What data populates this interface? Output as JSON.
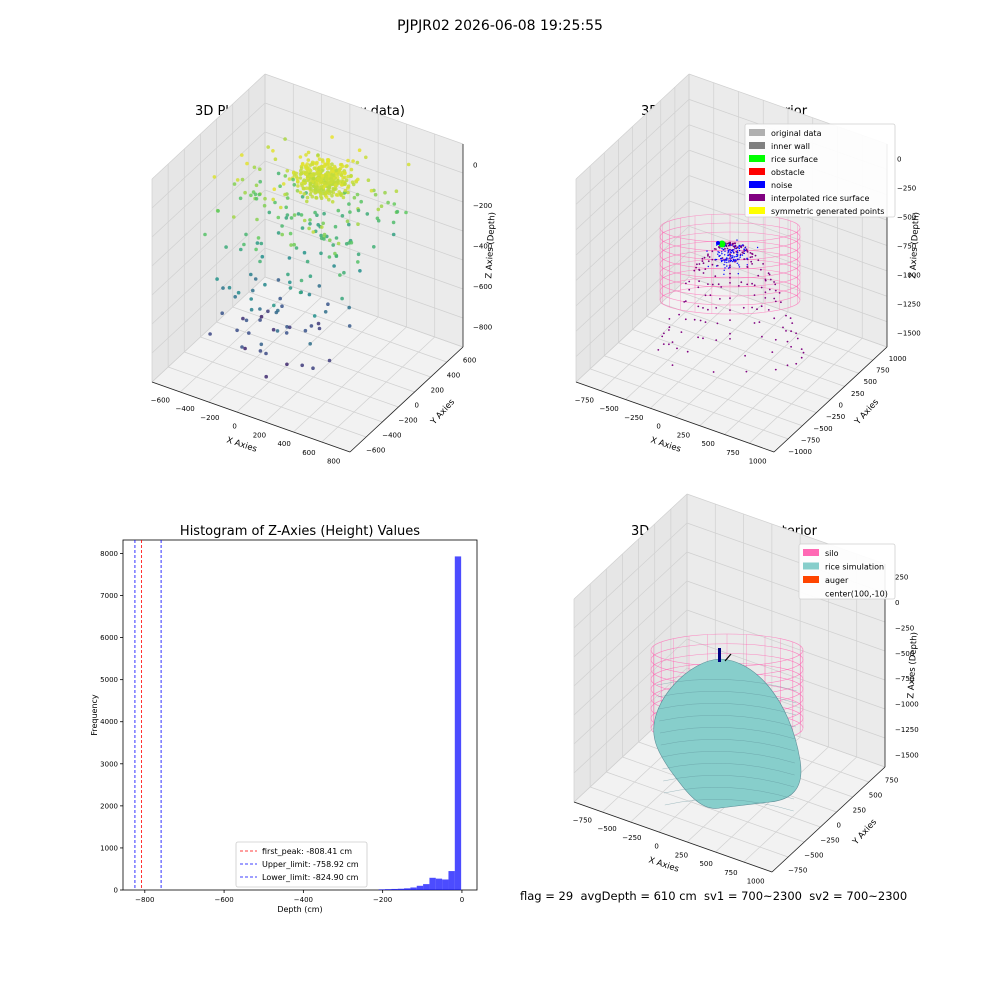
{
  "suptitle": "PJPJR02 2026-06-08 19:25:55",
  "status_text": "flag = 29  avgDepth = 610 cm  sv1 = 700~2300  sv2 = 700~2300",
  "colors": {
    "viridis": [
      "#440154",
      "#3b528b",
      "#21918c",
      "#5ec962",
      "#fde725"
    ],
    "silo_wire": "#ff69b4",
    "rice_sim": "#87cecb",
    "auger": "#ff4500",
    "hist_bar": "#0000ff",
    "first_peak": "#ff0000",
    "limit_line": "#0000ff"
  },
  "chart_data": [
    {
      "type": "scatter",
      "title": "3D Plot of Silo Interior(row data)",
      "xlabel": "X Axies",
      "ylabel": "Y Axies",
      "zlabel": "Z Axies (Depth)",
      "x_ticks": [
        "−600",
        "−400",
        "−200",
        "0",
        "200",
        "400",
        "600",
        "800"
      ],
      "y_ticks": [
        "−600",
        "−400",
        "−200",
        "0",
        "200",
        "400",
        "600"
      ],
      "z_ticks": [
        "−800",
        "−600",
        "−400",
        "−200",
        "0"
      ],
      "xlim": [
        -700,
        850
      ],
      "ylim": [
        -700,
        700
      ],
      "zlim": [
        -900,
        50
      ],
      "color_by": "z",
      "approx_points": 600
    },
    {
      "type": "scatter",
      "title": "3D classify of Silo Interior",
      "xlabel": "X Axies",
      "ylabel": "Y Axies",
      "zlabel": "Z Axies (Depth)",
      "x_ticks": [
        "−750",
        "−500",
        "−250",
        "0",
        "250",
        "500",
        "750",
        "1000"
      ],
      "y_ticks": [
        "−1000",
        "−750",
        "−500",
        "−250",
        "0",
        "250",
        "500",
        "750",
        "1000"
      ],
      "z_ticks": [
        "−1500",
        "−1250",
        "−1000",
        "−750",
        "−500",
        "−250",
        "0"
      ],
      "z_tick_partial": "0",
      "legend_position": "upper right",
      "legend": [
        {
          "label": "original data",
          "color": "#b0b0b0"
        },
        {
          "label": "inner wall",
          "color": "#808080"
        },
        {
          "label": "rice surface",
          "color": "#00ff00"
        },
        {
          "label": "obstacle",
          "color": "#ff0000"
        },
        {
          "label": "noise",
          "color": "#0000ff"
        },
        {
          "label": "interpolated rice surface",
          "color": "#800080"
        },
        {
          "label": "symmetric generated points",
          "color": "#ffff00"
        }
      ]
    },
    {
      "type": "bar",
      "title": "Histogram of Z-Axies (Height) Values",
      "xlabel": "Depth (cm)",
      "ylabel": "Frequency",
      "xlim": [
        -855,
        38
      ],
      "ylim": [
        0,
        8320
      ],
      "x_ticks": [
        -800,
        -600,
        -400,
        -200,
        0
      ],
      "y_ticks": [
        0,
        1000,
        2000,
        3000,
        4000,
        5000,
        6000,
        7000,
        8000
      ],
      "x_tick_labels": [
        "−800",
        "−600",
        "−400",
        "−200",
        "0"
      ],
      "bins": [
        {
          "x0": -210,
          "x1": -194,
          "count": 15
        },
        {
          "x0": -194,
          "x1": -178,
          "count": 20
        },
        {
          "x0": -178,
          "x1": -162,
          "count": 25
        },
        {
          "x0": -162,
          "x1": -146,
          "count": 30
        },
        {
          "x0": -146,
          "x1": -130,
          "count": 40
        },
        {
          "x0": -130,
          "x1": -114,
          "count": 60
        },
        {
          "x0": -114,
          "x1": -98,
          "count": 100
        },
        {
          "x0": -98,
          "x1": -82,
          "count": 140
        },
        {
          "x0": -82,
          "x1": -66,
          "count": 290
        },
        {
          "x0": -66,
          "x1": -50,
          "count": 270
        },
        {
          "x0": -50,
          "x1": -34,
          "count": 250
        },
        {
          "x0": -34,
          "x1": -18,
          "count": 450
        },
        {
          "x0": -18,
          "x1": -2,
          "count": 7930
        }
      ],
      "lines": [
        {
          "value": -808.41,
          "label": "first_peak: -808.41 cm",
          "color": "#ff0000"
        },
        {
          "value": -758.92,
          "label": "Upper_limit: -758.92 cm",
          "color": "#0000ff"
        },
        {
          "value": -824.9,
          "label": "Lower_limit: -824.90 cm",
          "color": "#0000ff"
        }
      ],
      "legend_position": "lower center"
    },
    {
      "type": "surface",
      "title": "3D simulation of Silo Interior",
      "xlabel": "X Axies",
      "ylabel": "Y Axies",
      "zlabel": "Z Axies (Depth)",
      "x_ticks": [
        "−750",
        "−500",
        "−250",
        "0",
        "250",
        "500",
        "750",
        "1000"
      ],
      "y_ticks": [
        "−750",
        "−500",
        "−250",
        "0",
        "250",
        "500",
        "750"
      ],
      "z_ticks": [
        "−1500",
        "−1250",
        "−1000",
        "−750",
        "−500",
        "−250",
        "0",
        "250"
      ],
      "legend_position": "upper right",
      "legend": [
        {
          "label": "silo",
          "color": "#ff69b4"
        },
        {
          "label": "rice simulation",
          "color": "#87cecb"
        },
        {
          "label": "auger",
          "color": "#ff4500"
        },
        {
          "label": "center(100,-10)",
          "color": ""
        }
      ]
    }
  ]
}
